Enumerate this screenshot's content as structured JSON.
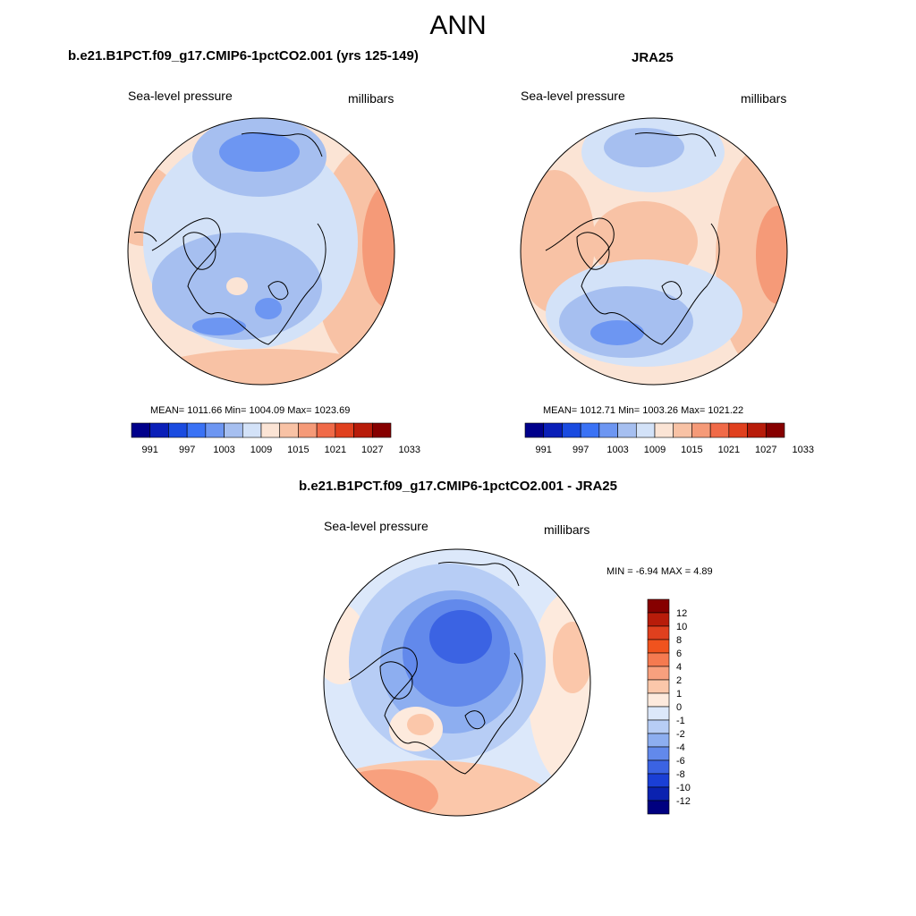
{
  "page": {
    "title": "ANN"
  },
  "panels": {
    "model": {
      "title": "b.e21.B1PCT.f09_g17.CMIP6-1pctCO2.001 (yrs 125-149)",
      "variable": "Sea-level pressure",
      "units": "millibars",
      "stats_text": "MEAN= 1011.66  Min= 1004.09  Max= 1023.69"
    },
    "obs": {
      "title": "JRA25",
      "variable": "Sea-level pressure",
      "units": "millibars",
      "stats_text": "MEAN= 1012.71  Min= 1003.26  Max= 1021.22"
    },
    "diff": {
      "title": "b.e21.B1PCT.f09_g17.CMIP6-1pctCO2.001 - JRA25",
      "variable": "Sea-level pressure",
      "units": "millibars",
      "stats_text": "MIN =  -6.94 MAX =   4.89"
    }
  },
  "colorbars": {
    "abs_labels": [
      "991",
      "997",
      "1003",
      "1009",
      "1015",
      "1021",
      "1027",
      "1033"
    ],
    "abs_colors": [
      "#00008b",
      "#0a1fb8",
      "#1a4be0",
      "#3a72f5",
      "#6d96f2",
      "#a6bff0",
      "#d3e2f8",
      "#fbe4d5",
      "#f8c2a5",
      "#f59a78",
      "#f06a48",
      "#e0401e",
      "#b81c0a",
      "#860000"
    ],
    "diff_labels": [
      "12",
      "10",
      "8",
      "6",
      "4",
      "2",
      "1",
      "0",
      "-1",
      "-2",
      "-4",
      "-6",
      "-8",
      "-10",
      "-12"
    ],
    "diff_colors": [
      "#860000",
      "#b81c0a",
      "#e0401e",
      "#f0531e",
      "#f57a50",
      "#f8a07e",
      "#fbc7aa",
      "#fdeadd",
      "#dce8fa",
      "#b7cdf5",
      "#8daef0",
      "#6289eb",
      "#3b63e3",
      "#1a3fd6",
      "#0a22b0",
      "#000080"
    ]
  },
  "map": {
    "projection": "north-polar-stereographic",
    "field": "sea-level-pressure"
  }
}
